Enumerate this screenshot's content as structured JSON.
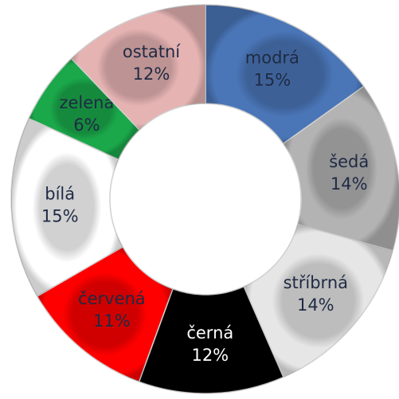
{
  "chart_data": {
    "type": "donut",
    "categories": [
      "modrá",
      "šedá",
      "stříbrná",
      "černá",
      "červená",
      "bílá",
      "zelená",
      "ostatní"
    ],
    "values": [
      15,
      14,
      14,
      12,
      11,
      15,
      6,
      12
    ],
    "value_labels": [
      "15%",
      "14%",
      "14%",
      "12%",
      "11%",
      "15%",
      "6%",
      "12%"
    ],
    "colors": [
      "#4a76b8",
      "#b3b3b3",
      "#e6e6e6",
      "#000000",
      "#ff0000",
      "#ffffff",
      "#1aa84a",
      "#e6b3b3"
    ]
  }
}
